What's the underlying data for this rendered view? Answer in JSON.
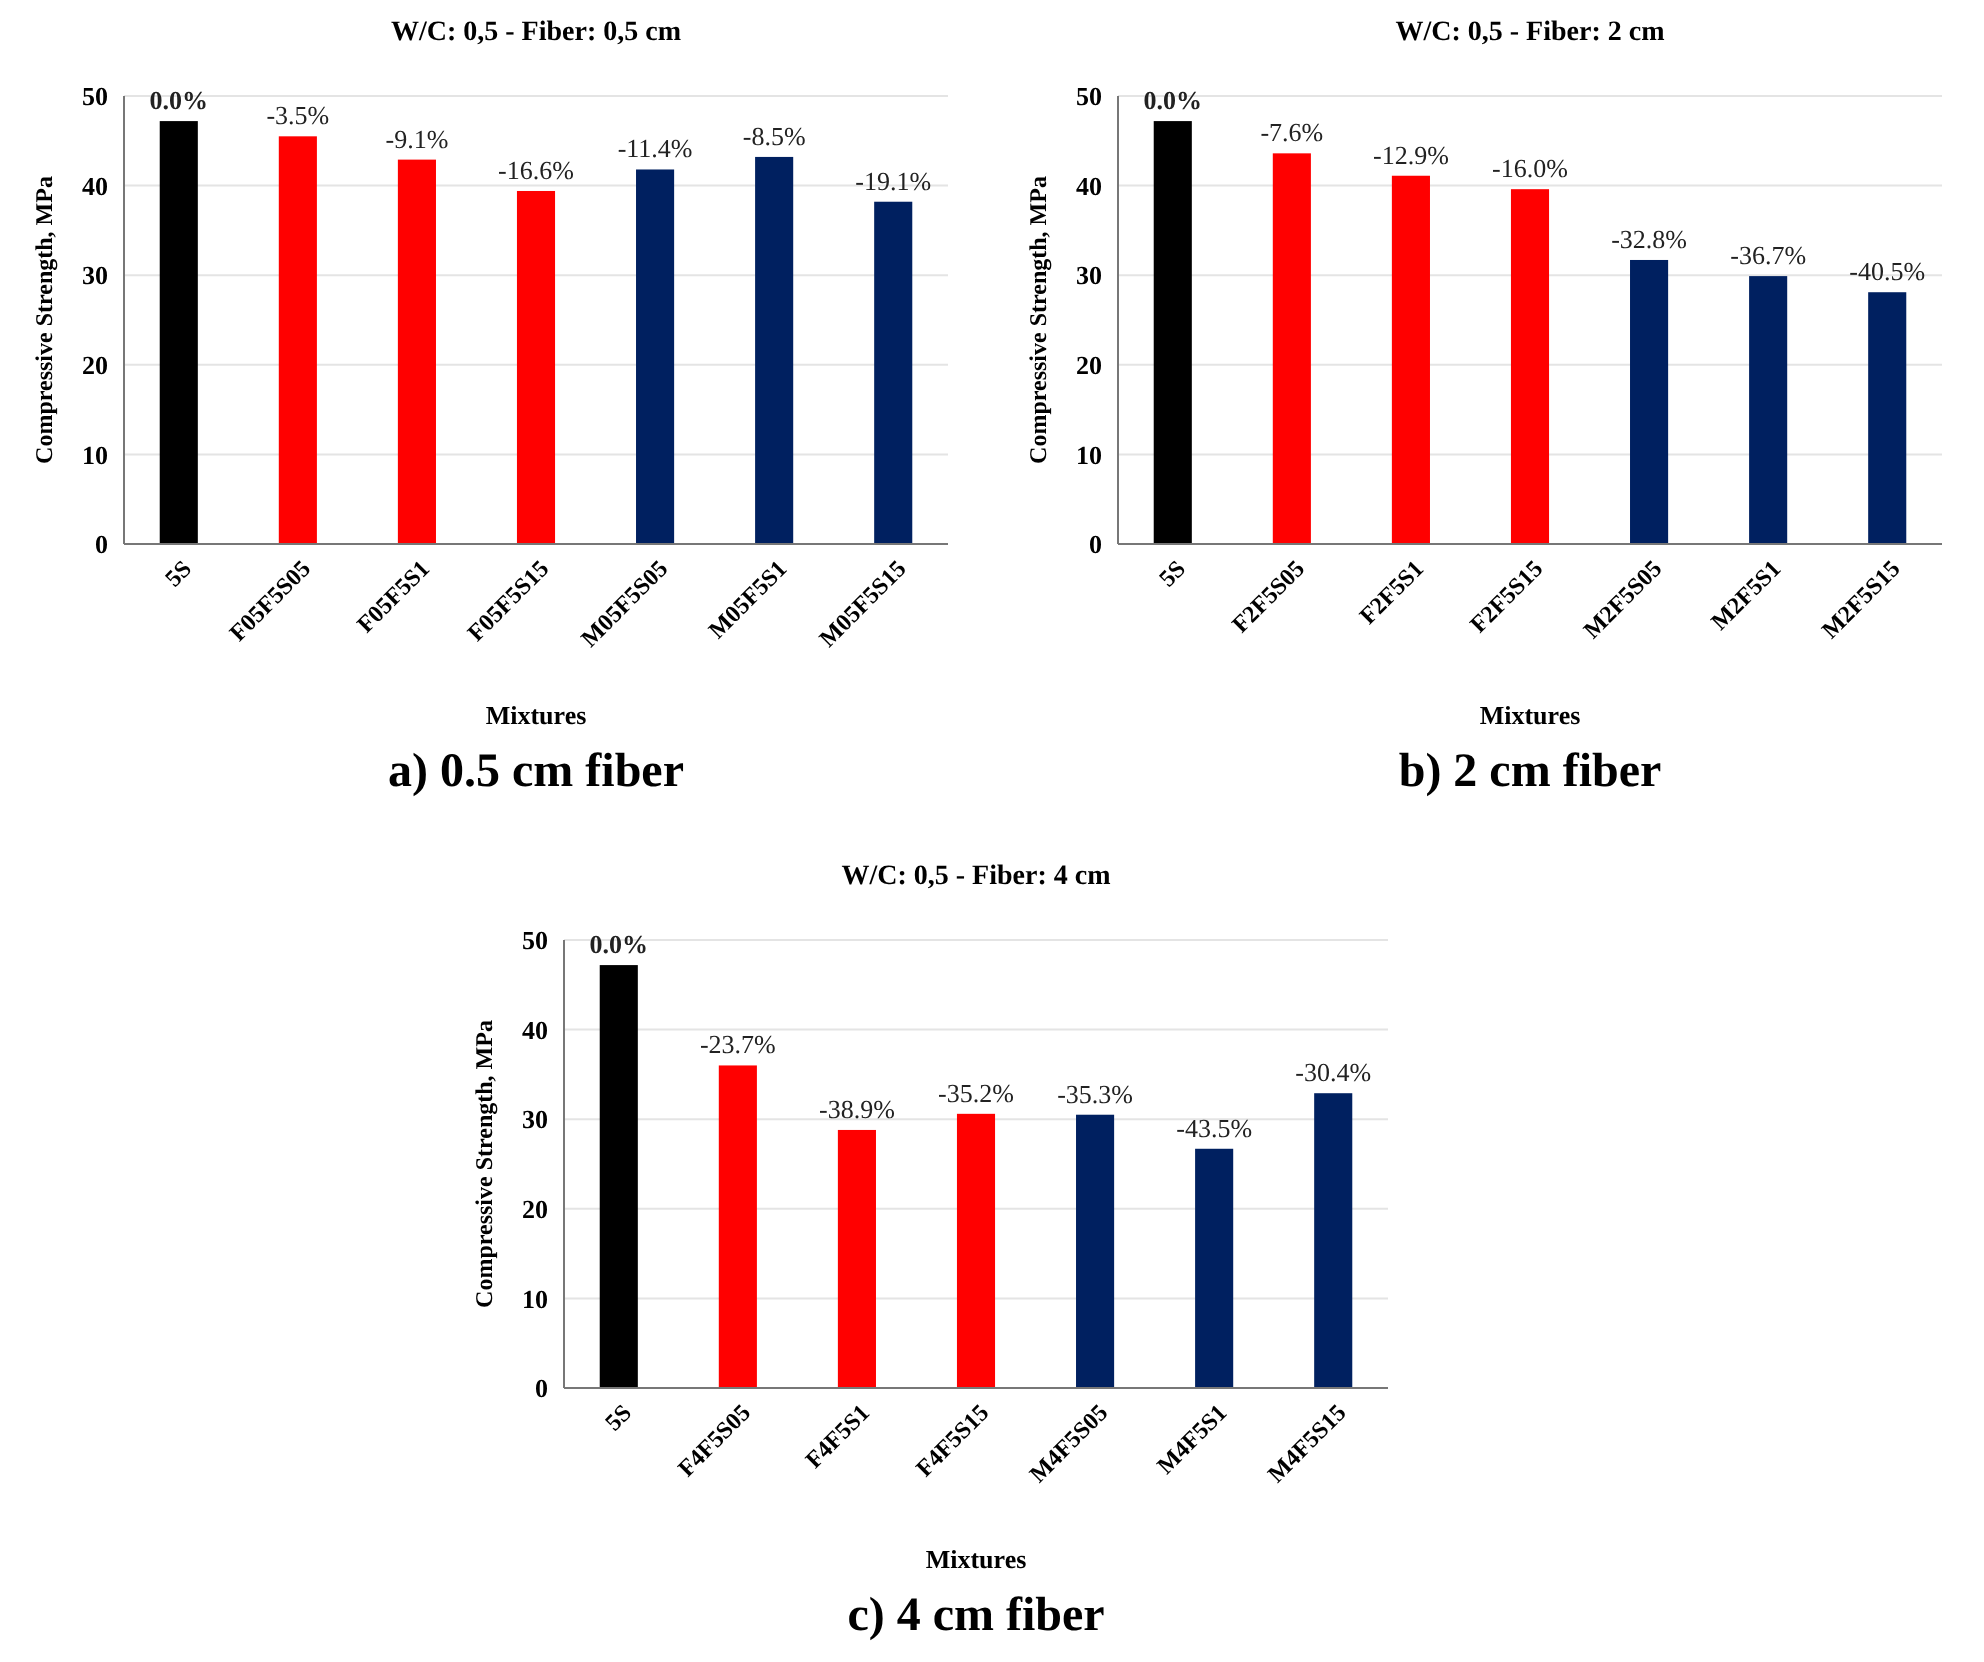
{
  "chart_data": [
    {
      "type": "bar",
      "title": "W/C: 0,5 - Fiber: 0,5 cm",
      "xlabel": "Mixtures",
      "ylabel": "Compressive Strength, MPa",
      "categories": [
        "5S",
        "F05F5S05",
        "F05F5S1",
        "F05F5S15",
        "M05F5S05",
        "M05F5S1",
        "M05F5S15"
      ],
      "values": [
        47.2,
        45.5,
        42.9,
        39.4,
        41.8,
        43.2,
        38.2
      ],
      "colors": [
        "#000000",
        "#ff0000",
        "#ff0000",
        "#ff0000",
        "#002060",
        "#002060",
        "#002060"
      ],
      "ylim": [
        0,
        50
      ],
      "yticks": [
        0,
        10,
        20,
        30,
        40,
        50
      ],
      "grid": "y",
      "annotations": [
        {
          "text": "0.0%",
          "x": "5S",
          "y": 47.2
        },
        {
          "text": "-3.5%",
          "x": "F05F5S05",
          "y": 45.5
        },
        {
          "text": "-9.1%",
          "x": "F05F5S1",
          "y": 42.9
        },
        {
          "text": "-16.6%",
          "x": "F05F5S15",
          "y": 39.4
        },
        {
          "text": "-11.4%",
          "x": "M05F5S05",
          "y": 41.8
        },
        {
          "text": "-8.5%",
          "x": "M05F5S1",
          "y": 43.2
        },
        {
          "text": "-19.1%",
          "x": "M05F5S15",
          "y": 38.2
        },
        "a) 0.5 cm fiber"
      ]
    },
    {
      "type": "bar",
      "title": "W/C: 0,5 - Fiber: 2 cm",
      "xlabel": "Mixtures",
      "ylabel": "Compressive Strength, MPa",
      "categories": [
        "5S",
        "F2F5S05",
        "F2F5S1",
        "F2F5S15",
        "M2F5S05",
        "M2F5S1",
        "M2F5S15"
      ],
      "values": [
        47.2,
        43.6,
        41.1,
        39.6,
        31.7,
        29.9,
        28.1
      ],
      "colors": [
        "#000000",
        "#ff0000",
        "#ff0000",
        "#ff0000",
        "#002060",
        "#002060",
        "#002060"
      ],
      "ylim": [
        0,
        50
      ],
      "yticks": [
        0,
        10,
        20,
        30,
        40,
        50
      ],
      "grid": "y",
      "annotations": [
        {
          "text": "0.0%",
          "x": "5S",
          "y": 47.2
        },
        {
          "text": "-7.6%",
          "x": "F2F5S05",
          "y": 43.6
        },
        {
          "text": "-12.9%",
          "x": "F2F5S1",
          "y": 41.1
        },
        {
          "text": "-16.0%",
          "x": "F2F5S15",
          "y": 39.6
        },
        {
          "text": "-32.8%",
          "x": "M2F5S05",
          "y": 31.7
        },
        {
          "text": "-36.7%",
          "x": "M2F5S1",
          "y": 29.9
        },
        {
          "text": "-40.5%",
          "x": "M2F5S15",
          "y": 28.1
        },
        "b) 2 cm fiber"
      ]
    },
    {
      "type": "bar",
      "title": "W/C: 0,5 - Fiber: 4 cm",
      "xlabel": "Mixtures",
      "ylabel": "Compressive Strength, MPa",
      "categories": [
        "5S",
        "F4F5S05",
        "F4F5S1",
        "F4F5S15",
        "M4F5S05",
        "M4F5S1",
        "M4F5S15"
      ],
      "values": [
        47.2,
        36.0,
        28.8,
        30.6,
        30.5,
        26.7,
        32.9
      ],
      "colors": [
        "#000000",
        "#ff0000",
        "#ff0000",
        "#ff0000",
        "#002060",
        "#002060",
        "#002060"
      ],
      "ylim": [
        0,
        50
      ],
      "yticks": [
        0,
        10,
        20,
        30,
        40,
        50
      ],
      "grid": "y",
      "annotations": [
        {
          "text": "0.0%",
          "x": "5S",
          "y": 47.2
        },
        {
          "text": "-23.7%",
          "x": "F4F5S05",
          "y": 36.0
        },
        {
          "text": "-38.9%",
          "x": "F4F5S1",
          "y": 28.8
        },
        {
          "text": "-35.2%",
          "x": "F4F5S15",
          "y": 30.6
        },
        {
          "text": "-35.3%",
          "x": "M4F5S05",
          "y": 30.5
        },
        {
          "text": "-43.5%",
          "x": "M4F5S1",
          "y": 26.7
        },
        {
          "text": "-30.4%",
          "x": "M4F5S15",
          "y": 32.9
        },
        "c) 4 cm fiber"
      ]
    }
  ]
}
